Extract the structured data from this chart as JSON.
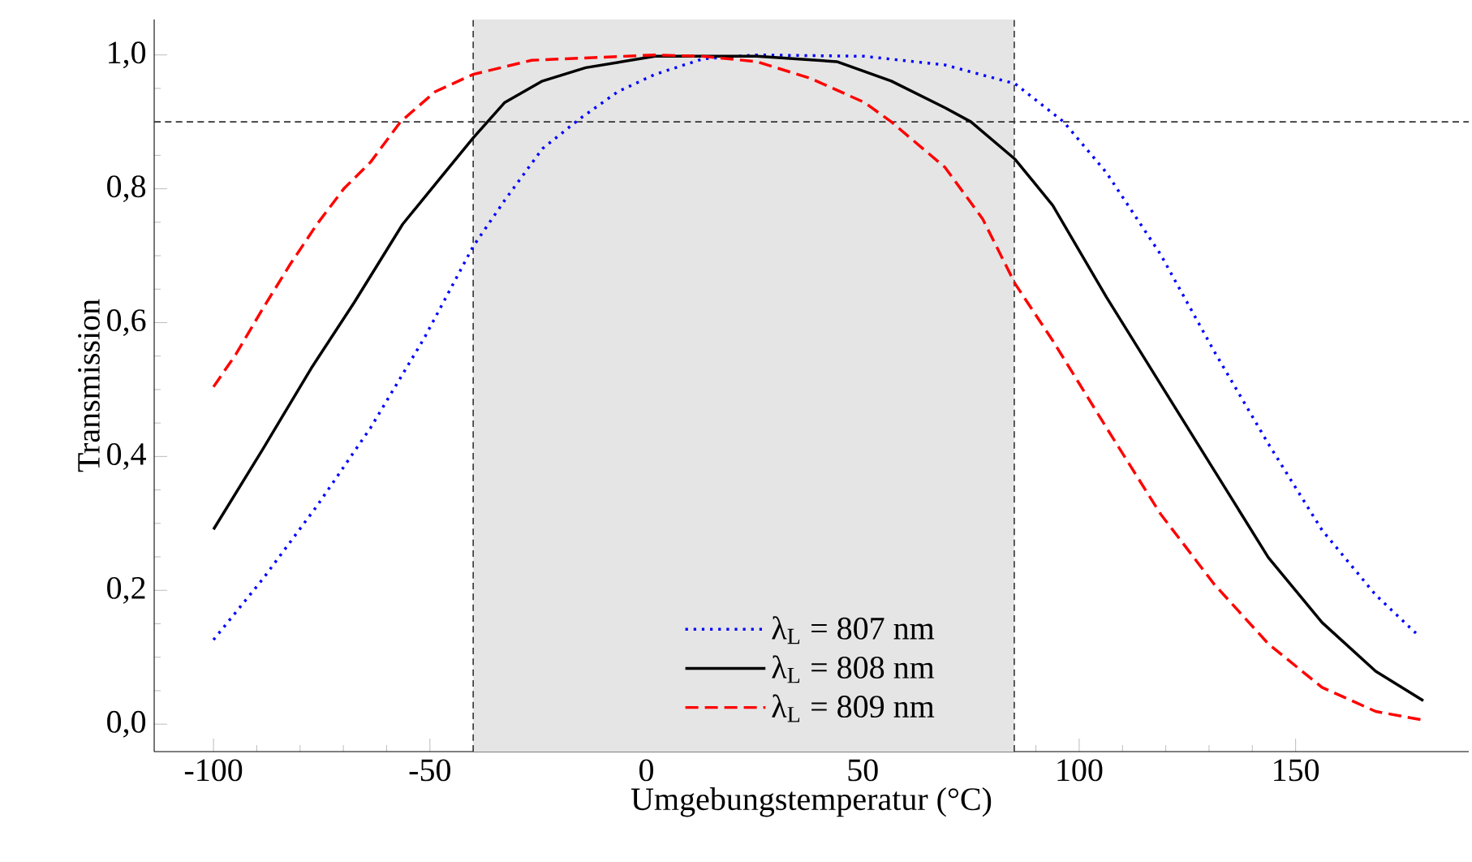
{
  "chart_data": {
    "type": "line",
    "xlabel": "Umgebungstemperatur (°C)",
    "ylabel": "Transmission",
    "xlim": [
      -113.7,
      190
    ],
    "ylim": [
      -0.041,
      1.053
    ],
    "xticks": [
      -100,
      -50,
      0,
      50,
      100,
      150
    ],
    "yticks": [
      {
        "value": 0,
        "label": "0,0"
      },
      {
        "value": 0.2,
        "label": "0,2"
      },
      {
        "value": 0.4,
        "label": "0,4"
      },
      {
        "value": 0.6,
        "label": "0,6"
      },
      {
        "value": 0.8,
        "label": "0,8"
      },
      {
        "value": 1.0,
        "label": "1,0"
      }
    ],
    "grid": false,
    "legend": "bottom",
    "ref_lines": [
      {
        "axis": "y",
        "value": 0.9,
        "color": "#333333",
        "line_style": "dashed"
      },
      {
        "axis": "x",
        "value": -40,
        "color": "#333333",
        "line_style": "dashed"
      },
      {
        "axis": "x",
        "value": 85,
        "color": "#333333",
        "line_style": "dashed"
      }
    ],
    "bands": [
      {
        "axis": "x",
        "from": -40,
        "to": 85,
        "color": "#e5e5e5"
      }
    ],
    "series": [
      {
        "name": "λ$_{L}$ = 807 nm",
        "color": "#0000ff",
        "line_style": "dotted",
        "x": [
          -100,
          -88.6,
          -76.1,
          -63.7,
          -51.3,
          -40,
          -32.7,
          -24,
          -15.3,
          -6.6,
          2,
          13,
          25.5,
          50.4,
          69,
          85.2,
          96.4,
          106.3,
          118.8,
          131.2,
          143.7,
          156.1,
          168.5,
          177.8
        ],
        "values": [
          0.126,
          0.217,
          0.326,
          0.443,
          0.577,
          0.714,
          0.783,
          0.86,
          0.905,
          0.945,
          0.971,
          0.994,
          1.0,
          0.998,
          0.985,
          0.957,
          0.9,
          0.824,
          0.702,
          0.557,
          0.419,
          0.29,
          0.193,
          0.136
        ]
      },
      {
        "name": "λ$_{L}$ = 808 nm",
        "color": "#000000",
        "line_style": "solid",
        "x": [
          -100,
          -88.6,
          -77.4,
          -67.5,
          -56.3,
          -47.6,
          -40,
          -32.7,
          -24,
          -14,
          2,
          25.5,
          44,
          56.6,
          69,
          75,
          85.2,
          93.9,
          106.3,
          118.8,
          131.2,
          143.7,
          156.1,
          168.5,
          179.5
        ],
        "values": [
          0.291,
          0.411,
          0.532,
          0.63,
          0.747,
          0.816,
          0.876,
          0.929,
          0.961,
          0.981,
          0.998,
          0.998,
          0.99,
          0.961,
          0.921,
          0.9,
          0.844,
          0.775,
          0.638,
          0.508,
          0.379,
          0.249,
          0.152,
          0.079,
          0.035
        ]
      },
      {
        "name": "λ$_{L}$ = 809 nm",
        "color": "#ff0000",
        "line_style": "dashed",
        "x": [
          -100,
          -94.8,
          -88.6,
          -82.4,
          -76.1,
          -69.9,
          -63.7,
          -56.8,
          -48.8,
          -40,
          -26.5,
          2,
          13,
          25.5,
          37.9,
          50.4,
          56.6,
          69,
          77.7,
          85.2,
          93.9,
          106.3,
          118.8,
          131.2,
          143.7,
          156.1,
          168.5,
          179.5
        ],
        "values": [
          0.504,
          0.553,
          0.621,
          0.686,
          0.747,
          0.8,
          0.84,
          0.9,
          0.945,
          0.971,
          0.992,
          1.0,
          0.998,
          0.99,
          0.965,
          0.929,
          0.9,
          0.832,
          0.755,
          0.658,
          0.573,
          0.443,
          0.314,
          0.209,
          0.12,
          0.055,
          0.019,
          0.006
        ]
      }
    ]
  }
}
